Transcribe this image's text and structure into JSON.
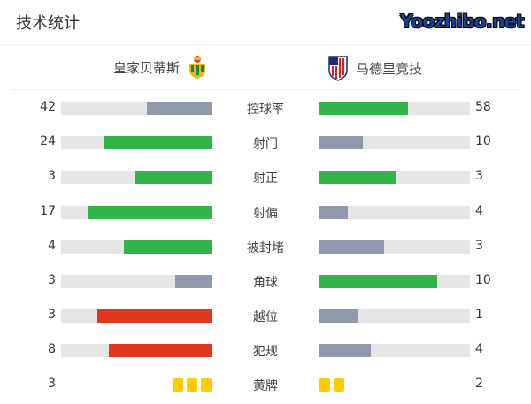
{
  "title": "技术统计",
  "home": {
    "name": "皇家贝蒂斯",
    "logo": "real-betis-crest"
  },
  "away": {
    "name": "马德里竞技",
    "logo": "atletico-madrid-crest"
  },
  "colors": {
    "gray": "#8f99ab",
    "green": "#33b44a",
    "red": "#e0381e",
    "yellow": "#ffcc00",
    "track": "#e6e6e6"
  },
  "stats": [
    {
      "label": "控球率",
      "home": "42",
      "away": "58",
      "home_fill": 0.43,
      "away_fill": 0.59,
      "home_color": "gray",
      "away_color": "green"
    },
    {
      "label": "射门",
      "home": "24",
      "away": "10",
      "home_fill": 0.72,
      "away_fill": 0.29,
      "home_color": "green",
      "away_color": "gray"
    },
    {
      "label": "射正",
      "home": "3",
      "away": "3",
      "home_fill": 0.51,
      "away_fill": 0.51,
      "home_color": "green",
      "away_color": "green"
    },
    {
      "label": "射偏",
      "home": "17",
      "away": "4",
      "home_fill": 0.82,
      "away_fill": 0.19,
      "home_color": "green",
      "away_color": "gray"
    },
    {
      "label": "被封堵",
      "home": "4",
      "away": "3",
      "home_fill": 0.58,
      "away_fill": 0.43,
      "home_color": "green",
      "away_color": "gray"
    },
    {
      "label": "角球",
      "home": "3",
      "away": "10",
      "home_fill": 0.24,
      "away_fill": 0.78,
      "home_color": "gray",
      "away_color": "green"
    },
    {
      "label": "越位",
      "home": "3",
      "away": "1",
      "home_fill": 0.76,
      "away_fill": 0.25,
      "home_color": "red",
      "away_color": "gray"
    },
    {
      "label": "犯规",
      "home": "8",
      "away": "4",
      "home_fill": 0.68,
      "away_fill": 0.34,
      "home_color": "red",
      "away_color": "gray"
    }
  ],
  "yellow": {
    "label": "黄牌",
    "home": "3",
    "away": "2",
    "home_cards": 3,
    "away_cards": 2
  },
  "watermark": "Yoozhibo.net"
}
